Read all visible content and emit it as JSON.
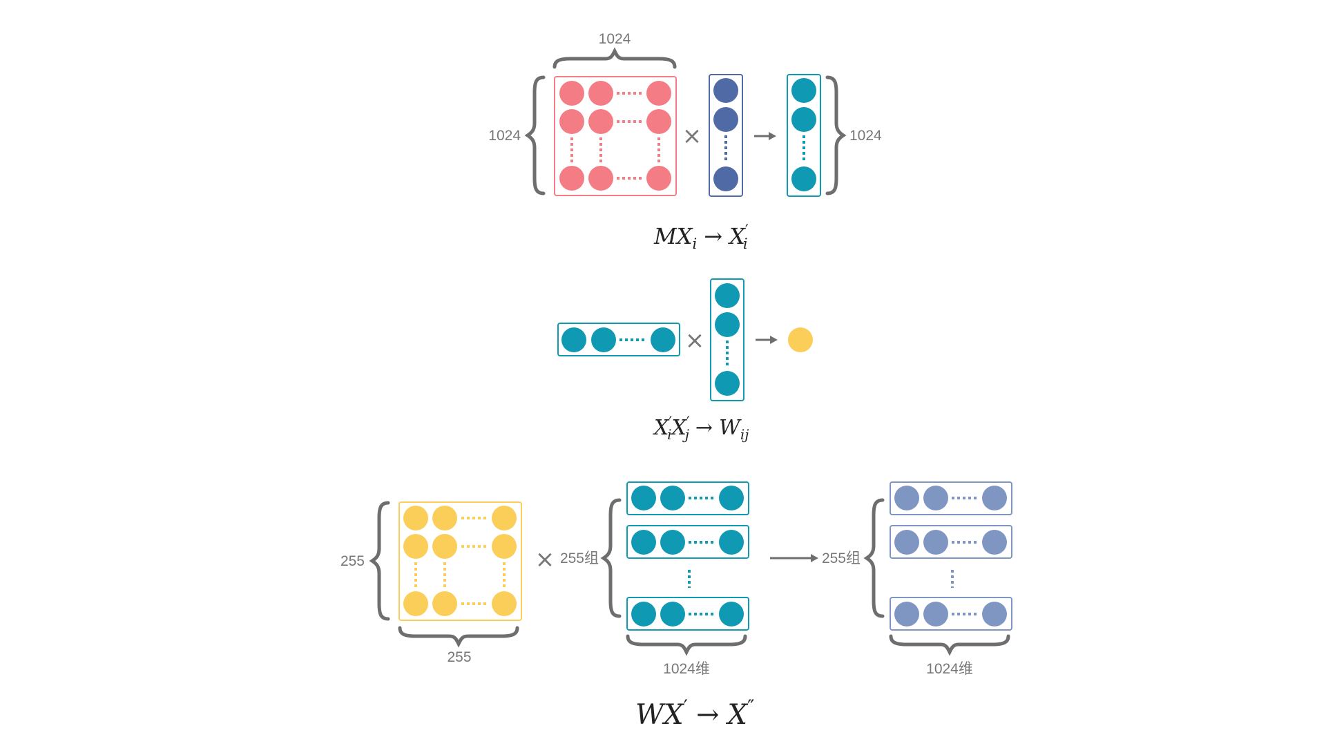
{
  "colors": {
    "pink": "#f47c84",
    "navy": "#4f6aa5",
    "teal": "#0f99b2",
    "yellow": "#fbce5a",
    "lavender": "#7f95c2",
    "brace": "#6e6e6e",
    "label": "#777777"
  },
  "section1": {
    "matrix_width_label": "1024",
    "matrix_height_label": "1024",
    "output_height_label": "1024",
    "multiply_symbol": "×",
    "formula": {
      "a": "MX",
      "a_sub": "i",
      "arrow": "→",
      "b": "X",
      "b_prime": "′",
      "b_sub": "i"
    }
  },
  "section2": {
    "multiply_symbol": "×",
    "formula": {
      "a": "X",
      "a_prime": "′",
      "a_sub": "i",
      "b": "X",
      "b_prime": "′",
      "b_sub": "j",
      "arrow": "→",
      "c": "W",
      "c_sub": "ij"
    }
  },
  "section3": {
    "matrix_height_label": "255",
    "matrix_width_label": "255",
    "input_groups_label": "255组",
    "output_groups_label": "255组",
    "input_dim_label": "1024维",
    "output_dim_label": "1024维",
    "multiply_symbol": "×",
    "formula": {
      "a": "WX",
      "a_prime": "′",
      "arrow": "→",
      "b": "X",
      "b_prime": "″"
    }
  }
}
